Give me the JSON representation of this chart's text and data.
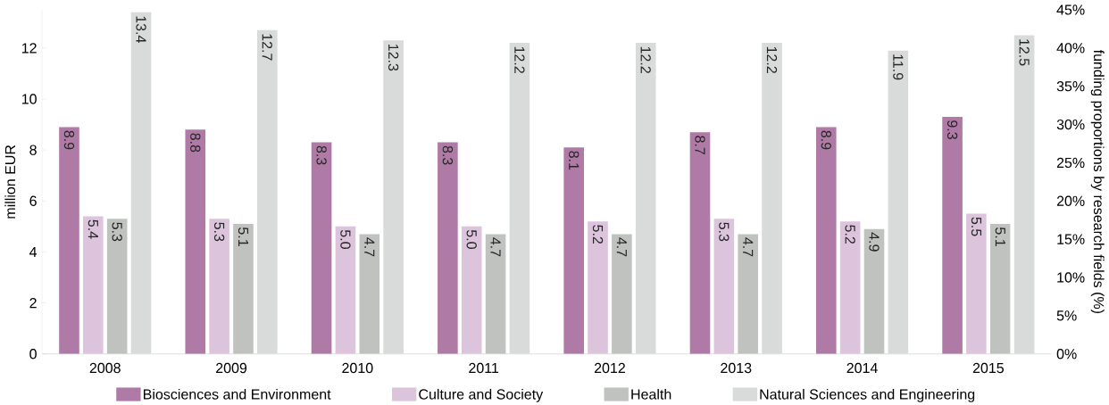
{
  "chart_data": {
    "type": "bar",
    "ylabel": "million EUR",
    "y2label": "funding proportions by research fields (%)",
    "categories": [
      "2008",
      "2009",
      "2010",
      "2011",
      "2012",
      "2013",
      "2014",
      "2015"
    ],
    "series": [
      {
        "name": "Biosciences and Environment",
        "color": "#b07aa6",
        "values": [
          8.9,
          8.8,
          8.3,
          8.3,
          8.1,
          8.7,
          8.9,
          9.3
        ],
        "value_labels": [
          "8.9",
          "8.8",
          "8.3",
          "8.3",
          "8.1",
          "8.7",
          "8.9",
          "9.3"
        ]
      },
      {
        "name": "Culture and Society",
        "color": "#dcc5dc",
        "values": [
          5.4,
          5.3,
          5.0,
          5.0,
          5.2,
          5.3,
          5.2,
          5.5
        ],
        "value_labels": [
          "5.4",
          "5.3",
          "5.0",
          "5.0",
          "5.2",
          "5.3",
          "5.2",
          "5.5"
        ]
      },
      {
        "name": "Health",
        "color": "#c0c2c0",
        "values": [
          5.3,
          5.1,
          4.7,
          4.7,
          4.7,
          4.7,
          4.9,
          5.1
        ],
        "value_labels": [
          "5.3",
          "5.1",
          "4.7",
          "4.7",
          "4.7",
          "4.7",
          "4.9",
          "5.1"
        ]
      },
      {
        "name": "Natural Sciences and Engineering",
        "color": "#d9dbda",
        "values": [
          13.4,
          12.7,
          12.3,
          12.2,
          12.2,
          12.2,
          11.9,
          12.5
        ],
        "value_labels": [
          "13.4",
          "12.7",
          "12.3",
          "12.2",
          "12.2",
          "12.2",
          "11.9",
          "12.5"
        ]
      }
    ],
    "ylim": [
      0,
      13.5
    ],
    "yticks": [
      0,
      2,
      4,
      6,
      8,
      10,
      12
    ],
    "y2lim": [
      0,
      45
    ],
    "y2ticks": [
      {
        "value": 0,
        "label": "0%"
      },
      {
        "value": 5,
        "label": "5%"
      },
      {
        "value": 10,
        "label": "10%"
      },
      {
        "value": 15,
        "label": "15%"
      },
      {
        "value": 20,
        "label": "20%"
      },
      {
        "value": 25,
        "label": "25%"
      },
      {
        "value": 30,
        "label": "30%"
      },
      {
        "value": 35,
        "label": "35%"
      },
      {
        "value": 40,
        "label": "40%"
      },
      {
        "value": 45,
        "label": "45%"
      }
    ],
    "legend": "bottom"
  }
}
